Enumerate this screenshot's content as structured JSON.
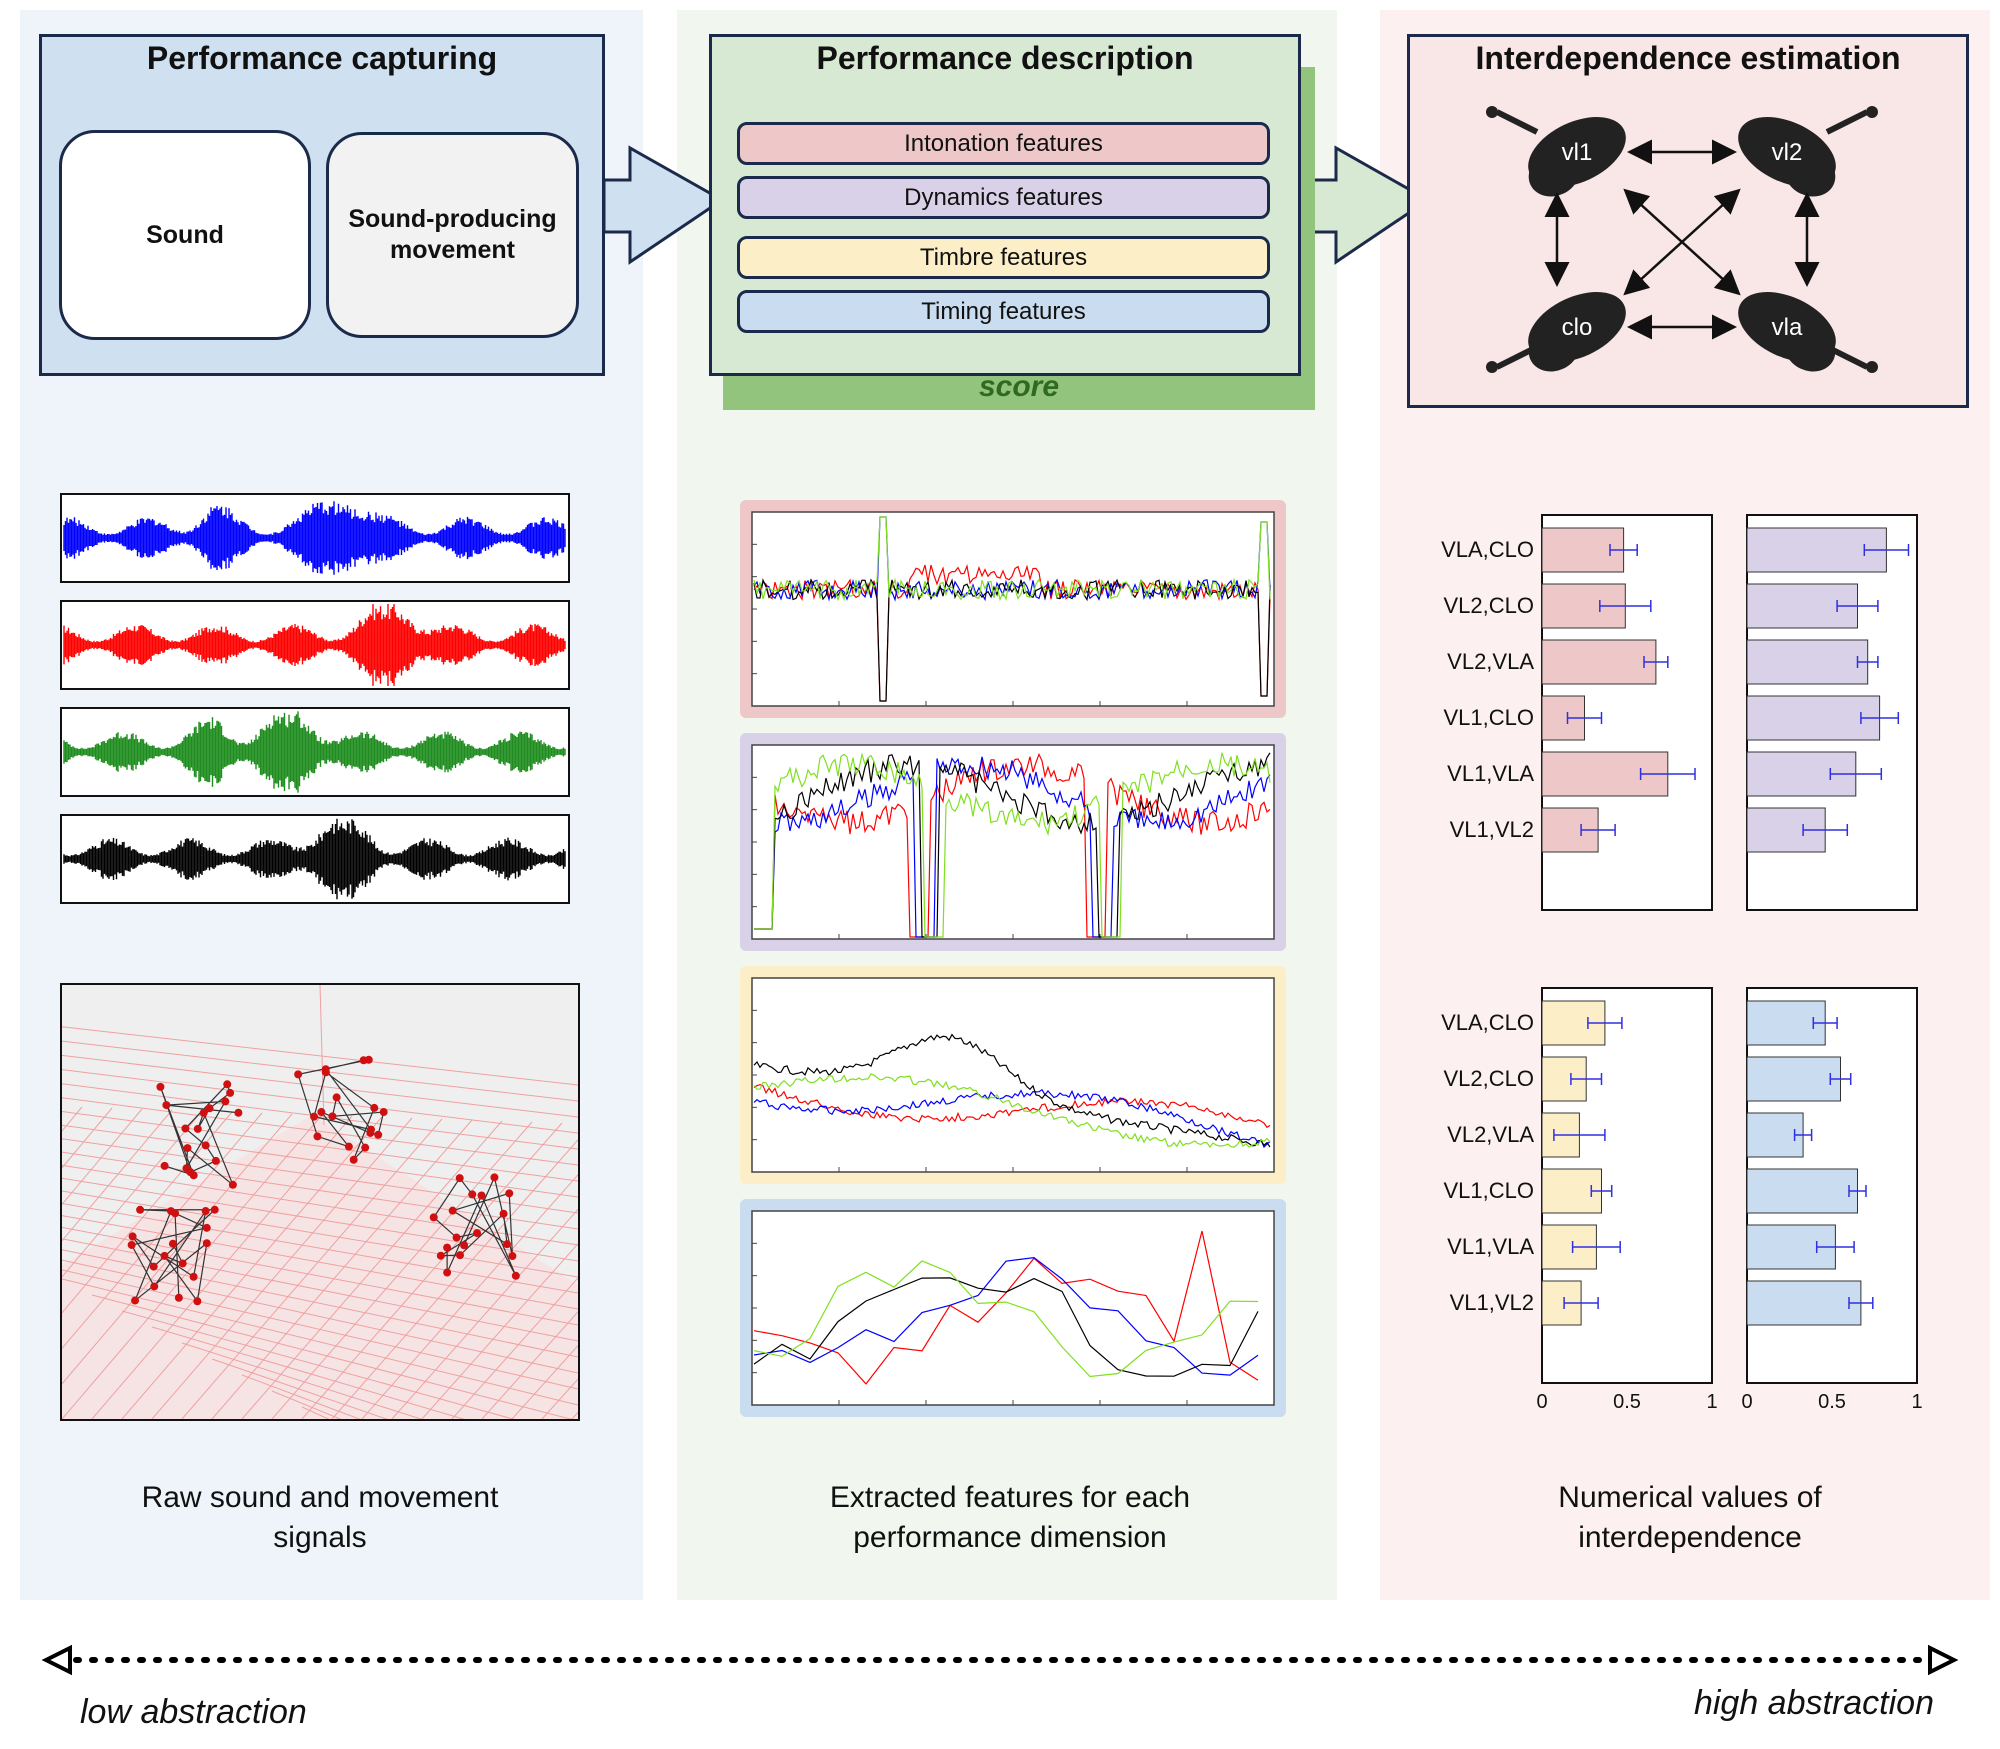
{
  "columns": {
    "capture": {
      "title": "Performance capturing",
      "sound_label": "Sound",
      "movement_label": "Sound-producing movement",
      "caption": "Raw sound and movement signals"
    },
    "describe": {
      "title": "Performance description",
      "features": [
        "Intonation features",
        "Dynamics features",
        "Timbre features",
        "Timing features"
      ],
      "score_label": "score",
      "caption": "Extracted features for each performance dimension"
    },
    "estimate": {
      "title": "Interdependence estimation",
      "instruments": [
        "vl1",
        "vl2",
        "clo",
        "vla"
      ],
      "caption": "Numerical values of interdependence"
    }
  },
  "abstraction": {
    "low": "low abstraction",
    "high": "high abstraction"
  },
  "colors": {
    "capture_bg": "#eef4fa",
    "describe_bg": "#f1f7ef",
    "estimate_bg": "#fcf0f0",
    "intonation": "#eec8c8",
    "dynamics": "#d9d1e8",
    "timbre": "#fcefc8",
    "timing": "#cadcef",
    "score_green": "#93c47d"
  },
  "chart_data": [
    {
      "type": "bar",
      "categories": [
        "VLA,CLO",
        "VL2,CLO",
        "VL2,VLA",
        "VL1,CLO",
        "VL1,VLA",
        "VL1,VL2"
      ],
      "values": [
        0.48,
        0.49,
        0.67,
        0.25,
        0.74,
        0.33
      ],
      "errors": [
        0.08,
        0.15,
        0.07,
        0.1,
        0.16,
        0.1
      ],
      "color": "#eec8c8",
      "xlim": [
        0,
        1
      ]
    },
    {
      "type": "bar",
      "categories": [
        "VLA,CLO",
        "VL2,CLO",
        "VL2,VLA",
        "VL1,CLO",
        "VL1,VLA",
        "VL1,VL2"
      ],
      "values": [
        0.82,
        0.65,
        0.71,
        0.78,
        0.64,
        0.46
      ],
      "errors": [
        0.13,
        0.12,
        0.06,
        0.11,
        0.15,
        0.13
      ],
      "color": "#d9d1e8",
      "xlim": [
        0,
        1
      ]
    },
    {
      "type": "bar",
      "categories": [
        "VLA,CLO",
        "VL2,CLO",
        "VL2,VLA",
        "VL1,CLO",
        "VL1,VLA",
        "VL1,VL2"
      ],
      "values": [
        0.37,
        0.26,
        0.22,
        0.35,
        0.32,
        0.23
      ],
      "errors": [
        0.1,
        0.09,
        0.15,
        0.06,
        0.14,
        0.1
      ],
      "color": "#fcefc8",
      "xlim": [
        0,
        1
      ],
      "xticks": [
        "0",
        "0.5",
        "1"
      ]
    },
    {
      "type": "bar",
      "categories": [
        "VLA,CLO",
        "VL2,CLO",
        "VL2,VLA",
        "VL1,CLO",
        "VL1,VLA",
        "VL1,VL2"
      ],
      "values": [
        0.46,
        0.55,
        0.33,
        0.65,
        0.52,
        0.67
      ],
      "errors": [
        0.07,
        0.06,
        0.05,
        0.05,
        0.11,
        0.07
      ],
      "color": "#cadcef",
      "xlim": [
        0,
        1
      ],
      "xticks": [
        "0",
        "0.5",
        "1"
      ]
    }
  ]
}
